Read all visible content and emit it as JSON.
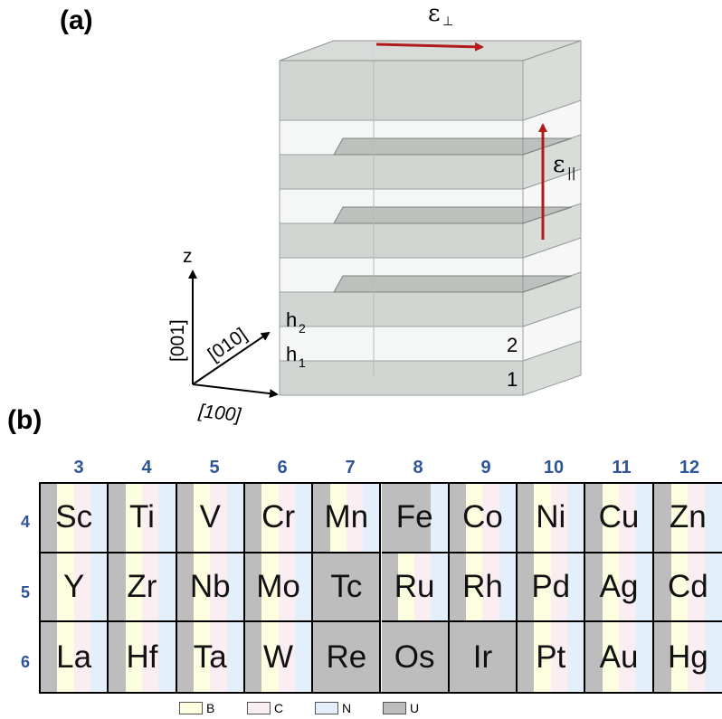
{
  "panel_a": {
    "label": "(a)",
    "eps_perp": {
      "symbol": "ε",
      "sub": "⊥"
    },
    "eps_par": {
      "symbol": "ε",
      "sub": "||"
    },
    "layer_h2": {
      "base": "h",
      "sub": "2"
    },
    "layer_h1": {
      "base": "h",
      "sub": "1"
    },
    "layer_num_2": "2",
    "layer_num_1": "1",
    "axes": {
      "z": "z",
      "dir_001": "[001]",
      "dir_010": "[010]",
      "dir_100": "[100]"
    },
    "colors": {
      "arrow": "#b01c1c",
      "layer_gray": "#c9cfcb",
      "layer_white": "#f3f4f4",
      "plane_dark": "#8f9490"
    }
  },
  "panel_b": {
    "label": "(b)",
    "groups": [
      "3",
      "4",
      "5",
      "6",
      "7",
      "8",
      "9",
      "10",
      "11",
      "12"
    ],
    "periods": [
      "4",
      "5",
      "6"
    ],
    "elements": [
      [
        "Sc",
        "Ti",
        "V",
        "Cr",
        "Mn",
        "Fe",
        "Co",
        "Ni",
        "Cu",
        "Zn"
      ],
      [
        "Y",
        "Zr",
        "Nb",
        "Mo",
        "Tc",
        "Ru",
        "Rh",
        "Pd",
        "Ag",
        "Cd"
      ],
      [
        "La",
        "Hf",
        "Ta",
        "W",
        "Re",
        "Os",
        "Ir",
        "Pt",
        "Au",
        "Hg"
      ]
    ],
    "stripes": [
      [
        "UBCN",
        "UBCN",
        "UBCN",
        "UBCN",
        "UBCN",
        "UUUN",
        "UBCN",
        "UBCN",
        "UBCN",
        "UBCN"
      ],
      [
        "UBCN",
        "UBCN",
        "UBCN",
        "UBCN",
        "UUUU",
        "UBCN",
        "UBCN",
        "UBCN",
        "UBCN",
        "UBCN"
      ],
      [
        "UBCN",
        "UBCN",
        "UBCN",
        "UBCN",
        "UUUU",
        "UUUU",
        "UUUU",
        "UBCN",
        "UBCN",
        "UBCN"
      ]
    ],
    "legend": [
      {
        "key": "B",
        "label": "B",
        "color": "#fdfde0"
      },
      {
        "key": "C",
        "label": "C",
        "color": "#fbeef2"
      },
      {
        "key": "N",
        "label": "N",
        "color": "#e3effb"
      },
      {
        "key": "U",
        "label": "U",
        "color": "#bdbdbd"
      }
    ]
  }
}
